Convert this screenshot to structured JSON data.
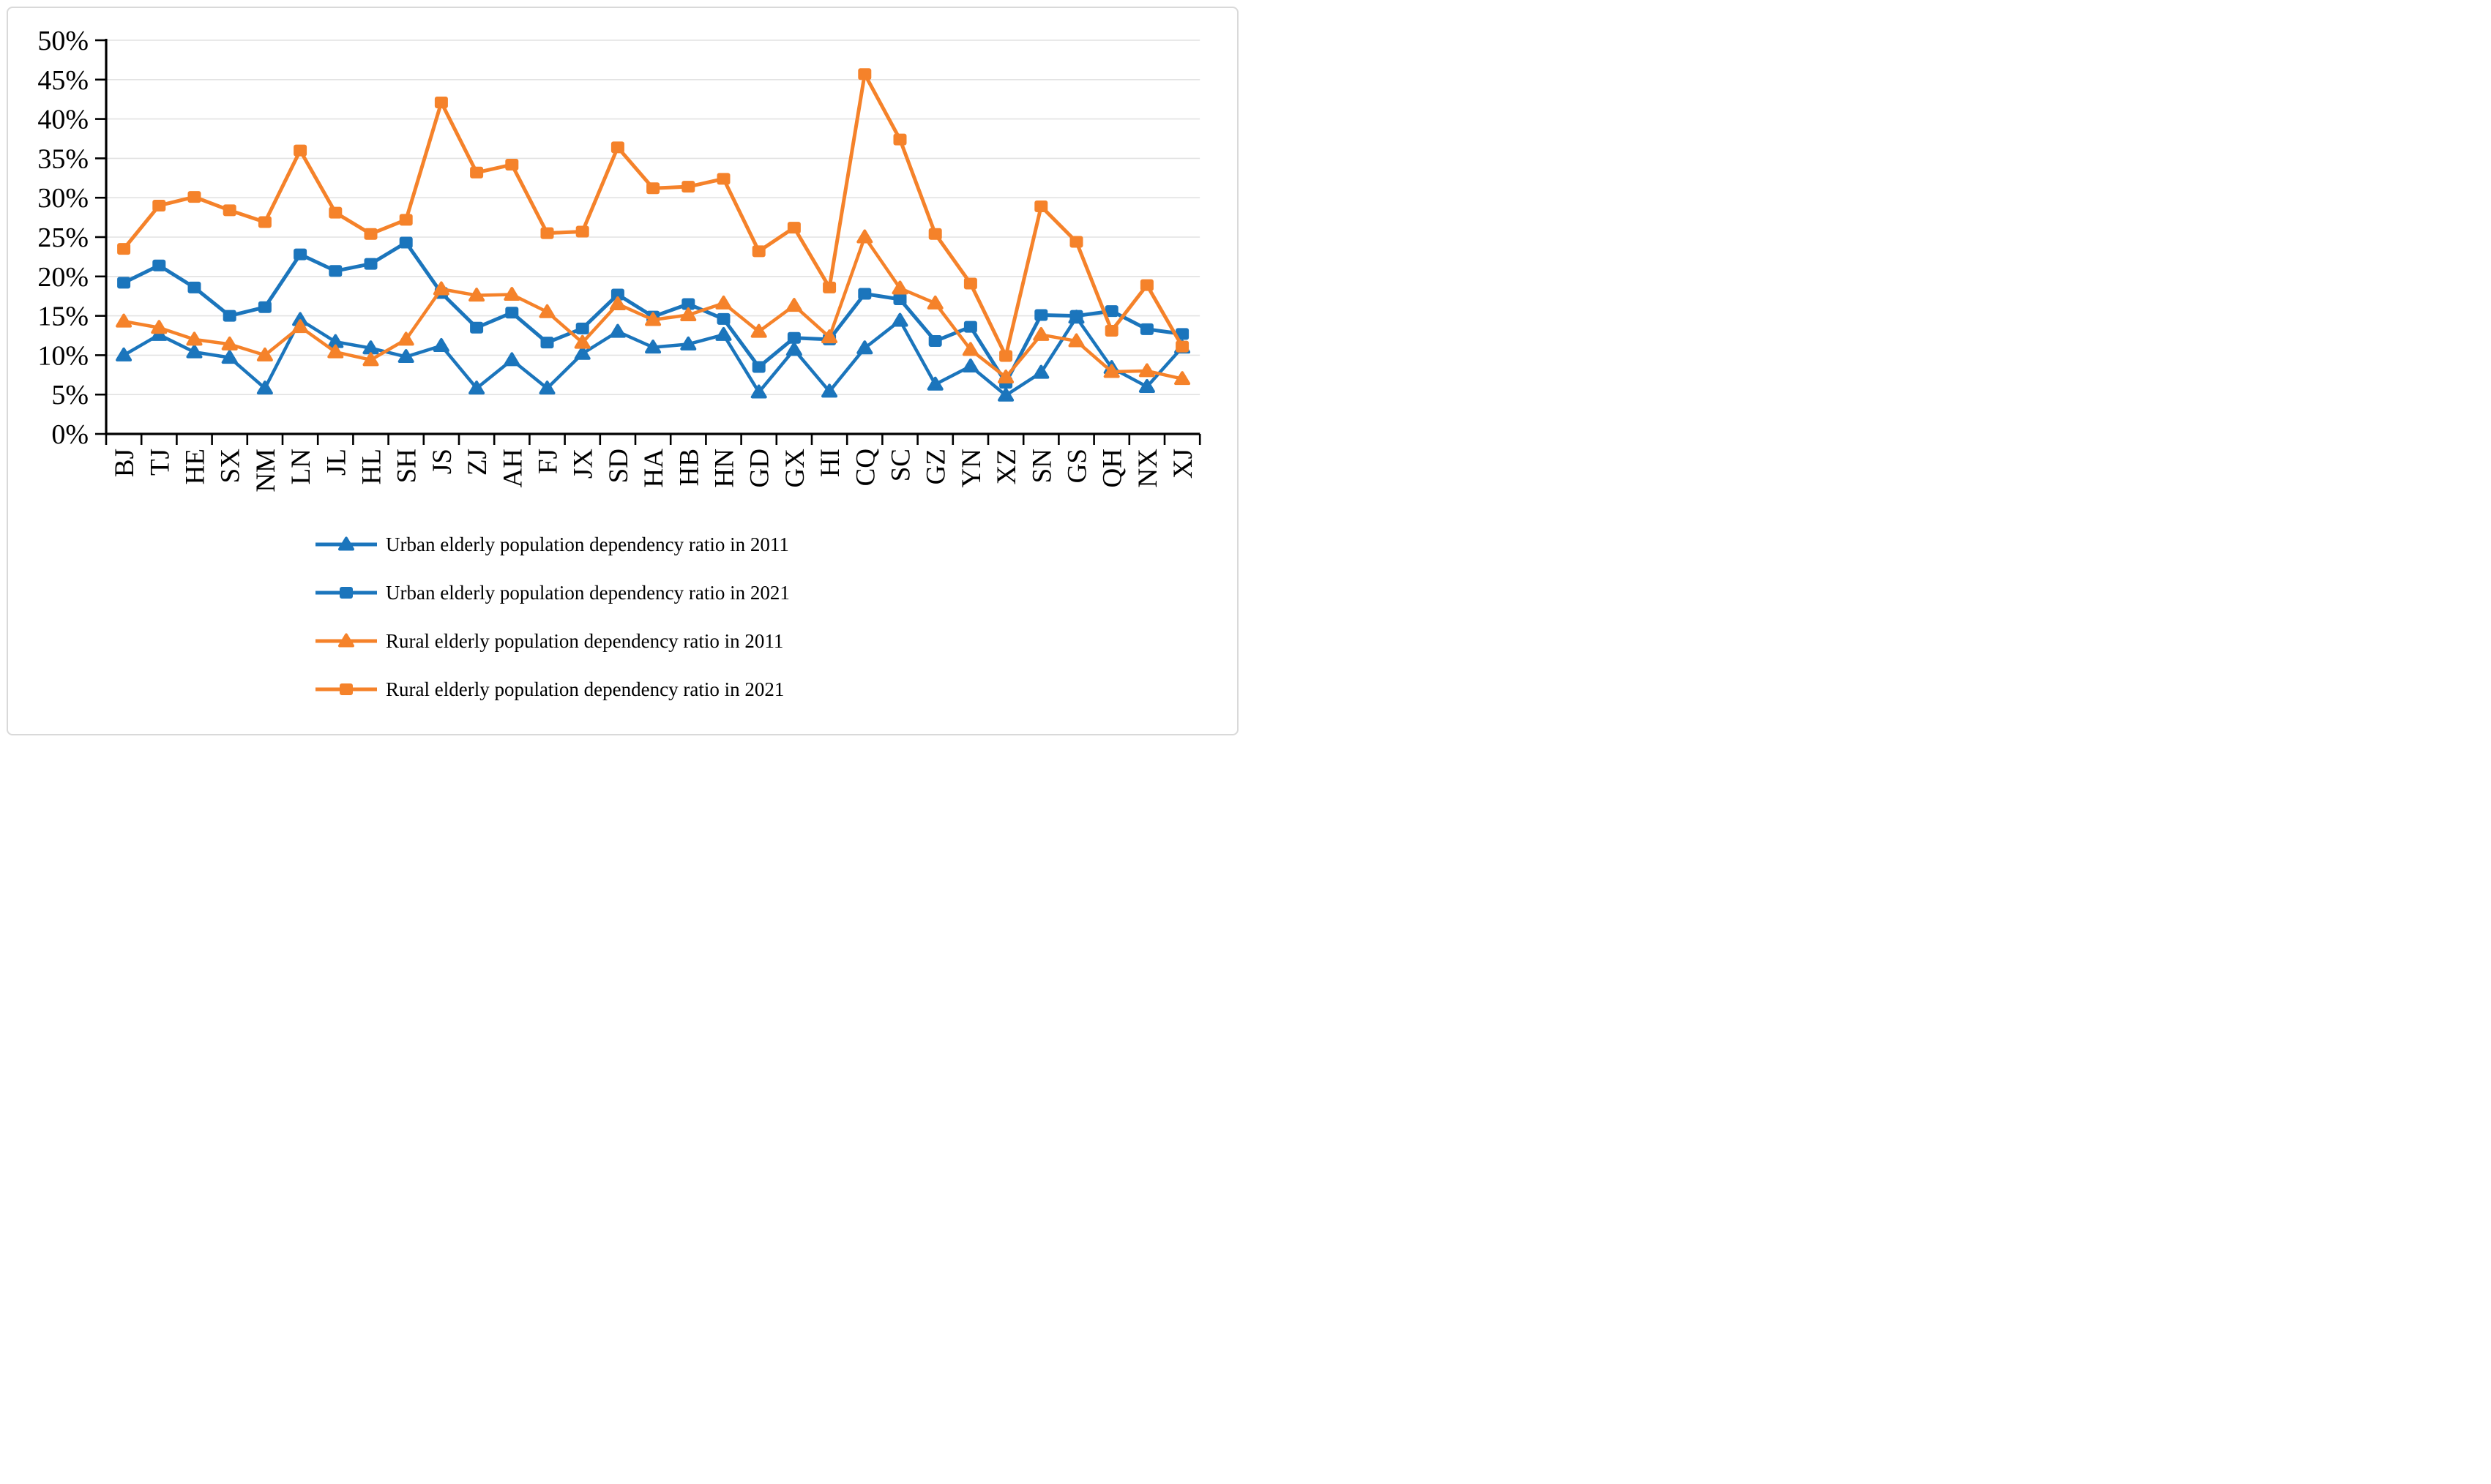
{
  "chart_data": {
    "type": "line",
    "title": "",
    "xlabel": "",
    "ylabel": "",
    "grid": true,
    "legend_position": "bottom",
    "categories": [
      "BJ",
      "TJ",
      "HE",
      "SX",
      "NM",
      "LN",
      "JL",
      "HL",
      "SH",
      "JS",
      "ZJ",
      "AH",
      "FJ",
      "JX",
      "SD",
      "HA",
      "HB",
      "HN",
      "GD",
      "GX",
      "HI",
      "CQ",
      "SC",
      "GZ",
      "YN",
      "XZ",
      "SN",
      "GS",
      "QH",
      "NX",
      "XJ"
    ],
    "y_axis": {
      "min": 0,
      "max": 50,
      "step": 5,
      "unit": "%",
      "tick_labels": [
        "0%",
        "5%",
        "10%",
        "15%",
        "20%",
        "25%",
        "30%",
        "35%",
        "40%",
        "45%",
        "50%"
      ]
    },
    "series": [
      {
        "name": "Urban elderly population dependency ratio in 2011",
        "marker": "triangle",
        "color": "#1B75BC",
        "line_width": 4.5,
        "values": [
          10.0,
          12.6,
          10.4,
          9.7,
          5.8,
          14.5,
          11.7,
          10.9,
          9.8,
          11.2,
          5.8,
          9.4,
          5.8,
          10.2,
          13.0,
          11.0,
          11.4,
          12.6,
          5.3,
          10.7,
          5.4,
          10.9,
          14.4,
          6.3,
          8.6,
          4.9,
          7.8,
          14.8,
          8.4,
          6.0,
          11.0
        ]
      },
      {
        "name": "Urban elderly population dependency ratio in 2021",
        "marker": "square",
        "color": "#1B75BC",
        "line_width": 5,
        "values": [
          19.2,
          21.4,
          18.6,
          15.0,
          16.1,
          22.8,
          20.7,
          21.6,
          24.3,
          17.9,
          13.5,
          15.4,
          11.6,
          13.4,
          17.7,
          14.9,
          16.5,
          14.6,
          8.5,
          12.2,
          12.0,
          17.8,
          17.1,
          11.8,
          13.6,
          6.5,
          15.1,
          15.0,
          15.6,
          13.3,
          12.7
        ]
      },
      {
        "name": "Rural elderly population dependency ratio in 2011",
        "marker": "triangle",
        "color": "#F5822A",
        "line_width": 4.5,
        "values": [
          14.3,
          13.5,
          12.0,
          11.4,
          10.0,
          13.6,
          10.4,
          9.4,
          12.0,
          18.4,
          17.6,
          17.7,
          15.5,
          11.6,
          16.5,
          14.5,
          15.1,
          16.6,
          13.0,
          16.3,
          12.3,
          25.0,
          18.5,
          16.6,
          10.7,
          7.2,
          12.6,
          11.8,
          7.9,
          8.0,
          7.0
        ]
      },
      {
        "name": "Rural elderly population dependency ratio in 2021",
        "marker": "square",
        "color": "#F5822A",
        "line_width": 5,
        "values": [
          23.5,
          29.0,
          30.1,
          28.4,
          26.9,
          36.0,
          28.1,
          25.4,
          27.2,
          42.1,
          33.2,
          34.2,
          25.5,
          25.7,
          36.4,
          31.2,
          31.4,
          32.4,
          23.2,
          26.2,
          18.6,
          45.7,
          37.4,
          25.4,
          19.1,
          9.9,
          28.9,
          24.4,
          13.1,
          18.9,
          11.1
        ]
      }
    ]
  },
  "colors": {
    "background": "#FFFFFF",
    "chart_border": "#D9D9D9",
    "gridline": "#E2E2E2",
    "axis": "#000000",
    "blue": "#1B75BC",
    "orange": "#F5822A"
  },
  "legend": {
    "items": [
      "Urban elderly population dependency ratio in 2011",
      "Urban elderly population dependency ratio in 2021",
      "Rural elderly population dependency ratio in 2011",
      "Rural elderly population dependency ratio in 2021"
    ]
  }
}
